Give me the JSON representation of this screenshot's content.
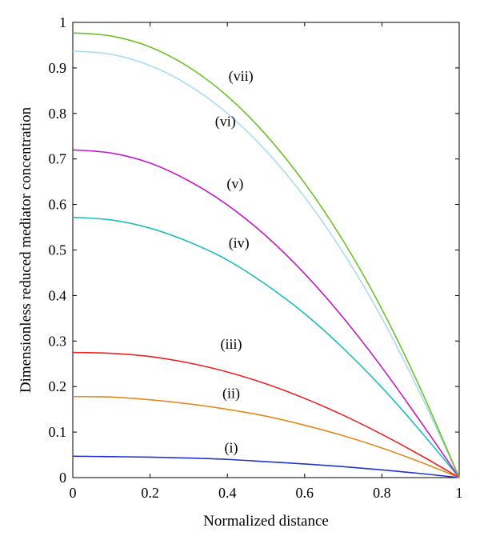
{
  "chart_data": {
    "type": "line",
    "xlabel": "Normalized distance",
    "ylabel": "Dimensionless reduced mediator concentration",
    "xlim": [
      0,
      1
    ],
    "ylim": [
      0,
      1
    ],
    "xticks": [
      0,
      0.2,
      0.4,
      0.6,
      0.8,
      1
    ],
    "yticks": [
      0,
      0.1,
      0.2,
      0.3,
      0.4,
      0.5,
      0.6,
      0.7,
      0.8,
      0.9,
      1
    ],
    "xtick_labels": [
      "0",
      "0.2",
      "0.4",
      "0.6",
      "0.8",
      "1"
    ],
    "ytick_labels": [
      "0",
      "0.1",
      "0.2",
      "0.3",
      "0.4",
      "0.5",
      "0.6",
      "0.7",
      "0.8",
      "0.9",
      "1"
    ],
    "grid": false,
    "x": [
      0,
      0.1,
      0.2,
      0.3,
      0.4,
      0.5,
      0.6,
      0.7,
      0.8,
      0.9,
      1.0
    ],
    "series": [
      {
        "label": "(i)",
        "color": "#2233cc",
        "label_x": 0.41,
        "label_y": 0.055,
        "values": [
          0.047,
          0.046,
          0.045,
          0.043,
          0.04,
          0.035,
          0.03,
          0.024,
          0.017,
          0.009,
          0.0
        ]
      },
      {
        "label": "(ii)",
        "color": "#e08a1e",
        "label_x": 0.41,
        "label_y": 0.175,
        "values": [
          0.178,
          0.177,
          0.171,
          0.162,
          0.15,
          0.135,
          0.115,
          0.092,
          0.065,
          0.034,
          0.0
        ]
      },
      {
        "label": "(iii)",
        "color": "#e82424",
        "label_x": 0.41,
        "label_y": 0.283,
        "values": [
          0.275,
          0.273,
          0.266,
          0.252,
          0.232,
          0.206,
          0.174,
          0.137,
          0.095,
          0.049,
          0.0
        ]
      },
      {
        "label": "(iv)",
        "color": "#1fbcbc",
        "label_x": 0.43,
        "label_y": 0.505,
        "values": [
          0.572,
          0.566,
          0.548,
          0.518,
          0.478,
          0.424,
          0.36,
          0.284,
          0.198,
          0.102,
          0.0
        ]
      },
      {
        "label": "(v)",
        "color": "#c21cc2",
        "label_x": 0.42,
        "label_y": 0.635,
        "values": [
          0.72,
          0.713,
          0.691,
          0.652,
          0.599,
          0.531,
          0.448,
          0.351,
          0.242,
          0.123,
          0.0
        ]
      },
      {
        "label": "(vi)",
        "color": "#a9dcf2",
        "label_x": 0.395,
        "label_y": 0.772,
        "values": [
          0.937,
          0.93,
          0.905,
          0.862,
          0.8,
          0.718,
          0.616,
          0.494,
          0.35,
          0.183,
          0.0
        ]
      },
      {
        "label": "(vii)",
        "color": "#6cc02a",
        "label_x": 0.435,
        "label_y": 0.872,
        "values": [
          0.977,
          0.97,
          0.946,
          0.902,
          0.838,
          0.753,
          0.647,
          0.52,
          0.37,
          0.195,
          0.0
        ]
      }
    ]
  }
}
